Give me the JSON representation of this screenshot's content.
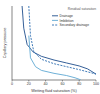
{
  "chart_data": {
    "type": "line",
    "xlabel": "Wetting fluid saturation (%)",
    "ylabel": "Capillary pressure",
    "xlim": [
      0,
      100
    ],
    "xticks": [
      0,
      20,
      40,
      60,
      80,
      100
    ],
    "ylim": [
      0,
      100
    ],
    "yticks": [],
    "tick_labels": "x",
    "legend": "upper right",
    "series": [
      {
        "name": "Drainage",
        "color": "#1f4e8c",
        "line_style": "solid",
        "x": [
          12,
          14,
          18,
          25,
          35,
          50,
          65,
          80,
          90,
          100
        ],
        "values": [
          100,
          70,
          48,
          38,
          32,
          27,
          23,
          19,
          15,
          8
        ]
      },
      {
        "name": "Imbibition",
        "color": "#5fa8d3",
        "line_style": "solid",
        "x": [
          20,
          22,
          28,
          35,
          50,
          65,
          75,
          80,
          82
        ],
        "values": [
          60,
          30,
          18,
          13,
          9,
          6,
          3,
          1,
          0
        ]
      },
      {
        "name": "Secondary drainage",
        "color": "#2b6cb0",
        "line_style": "dashed",
        "x": [
          20,
          22,
          26,
          35,
          50,
          65,
          80,
          90,
          100
        ],
        "values": [
          100,
          60,
          38,
          28,
          22,
          18,
          14,
          11,
          8
        ]
      }
    ],
    "annotations": [
      {
        "text": "Residual saturation",
        "x": 100,
        "y": 95
      }
    ]
  }
}
